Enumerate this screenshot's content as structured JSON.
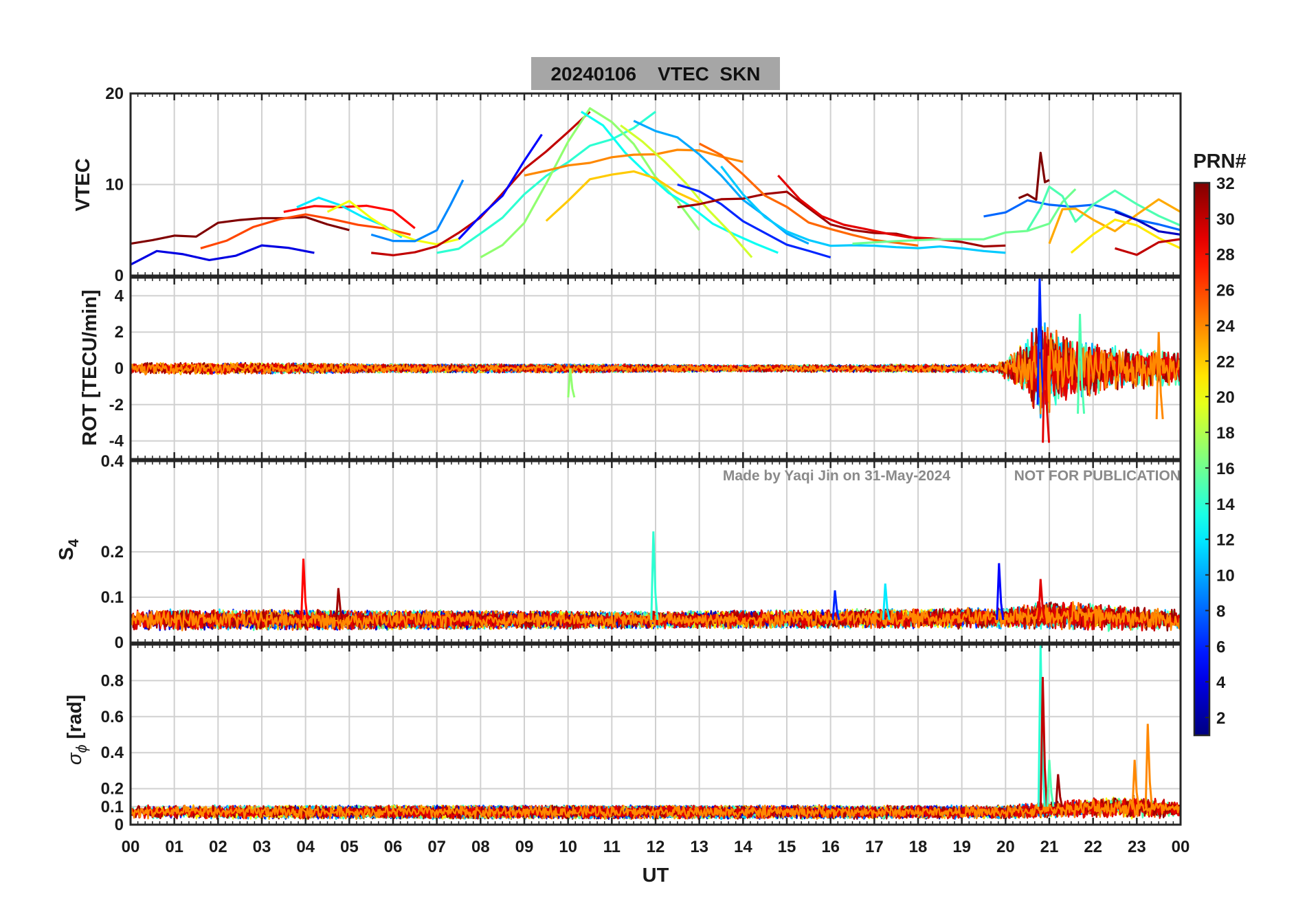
{
  "chart_data": {
    "type": "line",
    "title": "20240106    VTEC  SKN",
    "xlabel": "UT",
    "x_tick_labels": [
      "00",
      "01",
      "02",
      "03",
      "04",
      "05",
      "06",
      "07",
      "08",
      "09",
      "10",
      "11",
      "12",
      "13",
      "14",
      "15",
      "16",
      "17",
      "18",
      "19",
      "20",
      "21",
      "22",
      "23",
      "00"
    ],
    "xlim": [
      0,
      24
    ],
    "grid": true,
    "watermark": {
      "author": "Made by Yaqi Jin on 31-May-2024",
      "notice": "NOT FOR PUBLICATION"
    },
    "colorbar": {
      "label": "PRN#",
      "range": [
        1,
        32
      ],
      "ticks": [
        2,
        4,
        6,
        8,
        10,
        12,
        14,
        16,
        18,
        20,
        22,
        24,
        26,
        28,
        30,
        32
      ],
      "colormap": "jet"
    },
    "panels": [
      {
        "id": "vtec",
        "ylabel": "VTEC",
        "ylim": [
          0,
          20
        ],
        "yticks": [
          0,
          10,
          20
        ],
        "series": [
          {
            "prn": 32,
            "x": [
              0.0,
              0.5,
              1.0,
              1.5,
              2.0,
              2.5,
              3.0,
              3.5,
              4.0,
              4.5,
              5.0
            ],
            "y": [
              3.5,
              3.8,
              4.5,
              4.2,
              5.5,
              6.0,
              6.2,
              6.5,
              6.2,
              5.5,
              5.0
            ]
          },
          {
            "prn": 4,
            "x": [
              0.0,
              0.6,
              1.2,
              1.8,
              2.4,
              3.0,
              3.6,
              4.2
            ],
            "y": [
              1.2,
              2.5,
              2.2,
              1.8,
              2.0,
              3.5,
              3.0,
              2.5
            ]
          },
          {
            "prn": 26,
            "x": [
              1.6,
              2.2,
              2.8,
              3.4,
              4.0,
              4.6,
              5.2,
              5.8,
              6.4
            ],
            "y": [
              3.0,
              4.0,
              5.5,
              6.0,
              6.5,
              6.0,
              5.8,
              5.2,
              4.5
            ]
          },
          {
            "prn": 28,
            "x": [
              3.5,
              4.2,
              4.8,
              5.4,
              6.0,
              6.5
            ],
            "y": [
              7.0,
              7.5,
              7.6,
              7.8,
              7.2,
              5.2
            ]
          },
          {
            "prn": 12,
            "x": [
              3.8,
              4.3,
              4.8,
              5.3,
              5.8,
              6.2
            ],
            "y": [
              7.5,
              8.3,
              7.5,
              6.5,
              5.5,
              4.2
            ]
          },
          {
            "prn": 20,
            "x": [
              4.5,
              5.0,
              5.5,
              6.0,
              6.5,
              7.0,
              7.5
            ],
            "y": [
              7.0,
              8.0,
              6.5,
              5.0,
              4.0,
              3.5,
              4.0
            ]
          },
          {
            "prn": 9,
            "x": [
              5.5,
              6.0,
              6.5,
              7.0,
              7.3,
              7.6
            ],
            "y": [
              4.5,
              3.8,
              3.5,
              5.0,
              7.5,
              10.5
            ]
          },
          {
            "prn": 30,
            "x": [
              5.5,
              6.0,
              6.5,
              7.0,
              7.5,
              8.0,
              8.5,
              9.0,
              9.5,
              10.0,
              10.5
            ],
            "y": [
              2.5,
              2.4,
              2.6,
              3.0,
              4.5,
              6.5,
              9.0,
              11.5,
              13.5,
              16.0,
              18.0
            ]
          },
          {
            "prn": 5,
            "x": [
              7.5,
              8.0,
              8.5,
              9.0,
              9.4
            ],
            "y": [
              4.0,
              6.5,
              9.0,
              12.5,
              15.5
            ]
          },
          {
            "prn": 14,
            "x": [
              7.0,
              7.5,
              8.0,
              8.5,
              9.0,
              9.5,
              10.0,
              10.5,
              11.0,
              11.5,
              12.0
            ],
            "y": [
              2.5,
              3.0,
              4.5,
              6.5,
              9.0,
              11.0,
              12.5,
              14.0,
              15.0,
              16.5,
              18.0
            ]
          },
          {
            "prn": 17,
            "x": [
              8.0,
              8.5,
              9.0,
              9.5,
              10.0,
              10.5,
              11.0,
              11.5,
              12.0,
              12.5,
              13.0
            ],
            "y": [
              2.0,
              3.5,
              6.0,
              10.0,
              15.0,
              18.5,
              17.0,
              14.5,
              11.0,
              8.0,
              5.0
            ]
          },
          {
            "prn": 13,
            "x": [
              10.3,
              10.8,
              11.3,
              11.8,
              12.3,
              12.8,
              13.3,
              13.8,
              14.3,
              14.8
            ],
            "y": [
              18.0,
              16.5,
              13.5,
              11.0,
              9.0,
              7.5,
              6.0,
              4.5,
              3.5,
              2.5
            ]
          },
          {
            "prn": 24,
            "x": [
              9.0,
              9.5,
              10.0,
              10.5,
              11.0,
              11.5,
              12.0,
              12.5,
              13.0,
              13.5,
              14.0
            ],
            "y": [
              11.0,
              11.5,
              12.0,
              12.5,
              13.0,
              13.0,
              13.5,
              13.8,
              13.5,
              13.0,
              12.5
            ]
          },
          {
            "prn": 22,
            "x": [
              9.5,
              10.0,
              10.5,
              11.0,
              11.5,
              12.0,
              12.5,
              13.0
            ],
            "y": [
              6.0,
              8.5,
              10.5,
              11.0,
              11.5,
              10.5,
              9.0,
              8.0
            ]
          },
          {
            "prn": 10,
            "x": [
              11.5,
              12.0,
              12.5,
              13.0,
              13.5,
              14.0,
              14.5,
              15.0,
              15.5
            ],
            "y": [
              17.0,
              16.0,
              15.0,
              13.0,
              11.0,
              8.5,
              6.5,
              4.5,
              3.5
            ]
          },
          {
            "prn": 19,
            "x": [
              11.2,
              11.7,
              12.2,
              12.7,
              13.2,
              13.7,
              14.2
            ],
            "y": [
              16.5,
              14.5,
              12.5,
              10.0,
              7.5,
              4.5,
              2.0
            ]
          },
          {
            "prn": 6,
            "x": [
              12.5,
              13.0,
              13.5,
              14.0,
              14.5,
              15.0,
              15.5,
              16.0
            ],
            "y": [
              10.0,
              9.5,
              8.0,
              6.0,
              4.5,
              3.5,
              2.5,
              2.0
            ]
          },
          {
            "prn": 31,
            "x": [
              12.5,
              13.0,
              13.5,
              14.0,
              14.5,
              15.0,
              15.5,
              16.0,
              16.5,
              17.0,
              17.5,
              18.0,
              18.5,
              19.0,
              19.5,
              20.0
            ],
            "y": [
              7.5,
              8.0,
              8.2,
              8.5,
              9.0,
              9.5,
              7.5,
              5.5,
              4.8,
              4.5,
              4.3,
              4.0,
              3.8,
              3.8,
              3.5,
              3.3
            ]
          },
          {
            "prn": 29,
            "x": [
              14.8,
              15.3,
              15.8,
              16.3,
              16.8,
              17.3,
              17.8,
              18.3,
              18.8
            ],
            "y": [
              11.0,
              8.5,
              6.5,
              5.5,
              5.0,
              4.5,
              4.2,
              4.0,
              3.8
            ]
          },
          {
            "prn": 25,
            "x": [
              13.0,
              13.5,
              14.0,
              14.5,
              15.0,
              15.5,
              16.0,
              16.5,
              17.0,
              17.5,
              18.0
            ],
            "y": [
              14.5,
              13.0,
              11.0,
              9.0,
              7.5,
              6.0,
              5.0,
              4.5,
              4.0,
              3.5,
              3.3
            ]
          },
          {
            "prn": 11,
            "x": [
              13.5,
              14.0,
              14.5,
              15.0,
              15.5,
              16.0,
              16.5,
              17.0,
              17.5,
              18.0,
              18.5,
              19.0,
              19.5,
              20.0
            ],
            "y": [
              12.0,
              9.0,
              6.5,
              5.0,
              4.0,
              3.5,
              3.3,
              3.0,
              3.0,
              3.0,
              3.0,
              2.8,
              2.8,
              2.5
            ]
          },
          {
            "prn": 16,
            "x": [
              16.5,
              17.5,
              18.5,
              19.5,
              20.0,
              20.5,
              21.0,
              21.3,
              21.6
            ],
            "y": [
              3.5,
              3.8,
              4.0,
              4.2,
              4.5,
              5.0,
              6.0,
              8.0,
              9.5
            ]
          },
          {
            "prn": 8,
            "x": [
              19.5,
              20.0,
              20.5,
              21.0,
              21.5,
              22.0,
              22.5,
              23.0,
              23.5,
              24.0
            ],
            "y": [
              6.5,
              7.0,
              8.5,
              8.0,
              7.8,
              8.0,
              7.0,
              6.0,
              5.5,
              5.0
            ]
          },
          {
            "prn": 32,
            "x": [
              20.3,
              20.5,
              20.7,
              20.8,
              20.9,
              21.0
            ],
            "y": [
              8.5,
              9.0,
              8.5,
              13.5,
              10.0,
              10.5
            ]
          },
          {
            "prn": 15,
            "x": [
              20.5,
              20.8,
              21.0,
              21.3,
              21.6,
              22.0,
              22.5,
              23.0,
              23.5,
              24.0
            ],
            "y": [
              5.0,
              7.5,
              10.0,
              8.5,
              6.0,
              7.5,
              9.5,
              8.0,
              6.5,
              5.5
            ]
          },
          {
            "prn": 23,
            "x": [
              21.0,
              21.3,
              21.6,
              22.0,
              22.5,
              23.0,
              23.5,
              24.0
            ],
            "y": [
              3.5,
              7.0,
              7.5,
              6.0,
              5.0,
              6.5,
              8.5,
              7.0
            ]
          },
          {
            "prn": 21,
            "x": [
              21.5,
              22.0,
              22.5,
              23.0,
              23.5,
              24.0
            ],
            "y": [
              2.5,
              4.5,
              6.0,
              5.5,
              4.0,
              3.0
            ]
          },
          {
            "prn": 3,
            "x": [
              22.5,
              23.0,
              23.5,
              24.0
            ],
            "y": [
              7.0,
              6.0,
              5.0,
              4.5
            ]
          },
          {
            "prn": 30,
            "x": [
              22.5,
              23.0,
              23.5,
              24.0
            ],
            "y": [
              3.0,
              2.5,
              3.5,
              4.0
            ]
          }
        ]
      },
      {
        "id": "rot",
        "ylabel": "ROT [TECU/min]",
        "ylim": [
          -5,
          5
        ],
        "yticks": [
          -4,
          -2,
          0,
          2,
          4
        ],
        "tick_labels": [
          "-4",
          "-2",
          "0",
          "2",
          "4"
        ],
        "noise_envelope": [
          {
            "x": 0,
            "amp": 0.35
          },
          {
            "x": 2,
            "amp": 0.35
          },
          {
            "x": 6,
            "amp": 0.25
          },
          {
            "x": 10,
            "amp": 0.25
          },
          {
            "x": 14,
            "amp": 0.2
          },
          {
            "x": 19.8,
            "amp": 0.25
          },
          {
            "x": 20.3,
            "amp": 1.2
          },
          {
            "x": 20.8,
            "amp": 3.0
          },
          {
            "x": 21.5,
            "amp": 1.8
          },
          {
            "x": 22.5,
            "amp": 1.3
          },
          {
            "x": 24,
            "amp": 1.0
          }
        ],
        "peaks": [
          {
            "x": 20.78,
            "min": -2.0,
            "max": 5.0,
            "prn": 6
          },
          {
            "x": 20.9,
            "min": -4.1,
            "max": 2.0,
            "prn": 29
          },
          {
            "x": 21.7,
            "min": -2.5,
            "max": 3.0,
            "prn": 15
          },
          {
            "x": 23.5,
            "min": -2.8,
            "max": 2.0,
            "prn": 24
          },
          {
            "x": 10.05,
            "min": -1.6,
            "max": 0.0,
            "prn": 17
          }
        ]
      },
      {
        "id": "s4",
        "ylabel": "S4",
        "ylim": [
          0,
          0.4
        ],
        "yticks": [
          0,
          0.1,
          0.2,
          0.4
        ],
        "tick_labels": [
          "0",
          "0.1",
          "0.2",
          "0.4"
        ],
        "noise_envelope": [
          {
            "x": 0,
            "base": 0.05,
            "amp": 0.025
          },
          {
            "x": 12,
            "base": 0.05,
            "amp": 0.02
          },
          {
            "x": 20,
            "base": 0.055,
            "amp": 0.025
          },
          {
            "x": 21,
            "base": 0.06,
            "amp": 0.035
          },
          {
            "x": 24,
            "base": 0.05,
            "amp": 0.025
          }
        ],
        "peaks": [
          {
            "x": 3.95,
            "min": 0.05,
            "max": 0.185,
            "prn": 28
          },
          {
            "x": 4.75,
            "min": 0.05,
            "max": 0.12,
            "prn": 31
          },
          {
            "x": 11.95,
            "min": 0.05,
            "max": 0.245,
            "prn": 14
          },
          {
            "x": 19.85,
            "min": 0.05,
            "max": 0.175,
            "prn": 5
          },
          {
            "x": 20.8,
            "min": 0.05,
            "max": 0.14,
            "prn": 29
          },
          {
            "x": 16.1,
            "min": 0.05,
            "max": 0.115,
            "prn": 6
          },
          {
            "x": 17.25,
            "min": 0.05,
            "max": 0.13,
            "prn": 12
          }
        ]
      },
      {
        "id": "sigma_phi",
        "ylabel": "σϕ [rad]",
        "ylim": [
          0,
          1.0
        ],
        "yticks": [
          0,
          0.1,
          0.2,
          0.4,
          0.6,
          0.8
        ],
        "tick_labels": [
          "0",
          "0.1",
          "0.2",
          "0.4",
          "0.6",
          "0.8"
        ],
        "noise_envelope": [
          {
            "x": 0,
            "base": 0.07,
            "amp": 0.04
          },
          {
            "x": 20,
            "base": 0.07,
            "amp": 0.04
          },
          {
            "x": 21.5,
            "base": 0.09,
            "amp": 0.05
          },
          {
            "x": 22.8,
            "base": 0.1,
            "amp": 0.07
          },
          {
            "x": 24,
            "base": 0.08,
            "amp": 0.05
          }
        ],
        "peaks": [
          {
            "x": 20.8,
            "min": 0.1,
            "max": 1.0,
            "prn": 14
          },
          {
            "x": 20.85,
            "min": 0.1,
            "max": 0.82,
            "prn": 30
          },
          {
            "x": 21.2,
            "min": 0.1,
            "max": 0.28,
            "prn": 31
          },
          {
            "x": 21.0,
            "min": 0.1,
            "max": 0.36,
            "prn": 15
          },
          {
            "x": 23.25,
            "min": 0.1,
            "max": 0.56,
            "prn": 24
          },
          {
            "x": 22.95,
            "min": 0.1,
            "max": 0.36,
            "prn": 24
          }
        ]
      }
    ]
  }
}
